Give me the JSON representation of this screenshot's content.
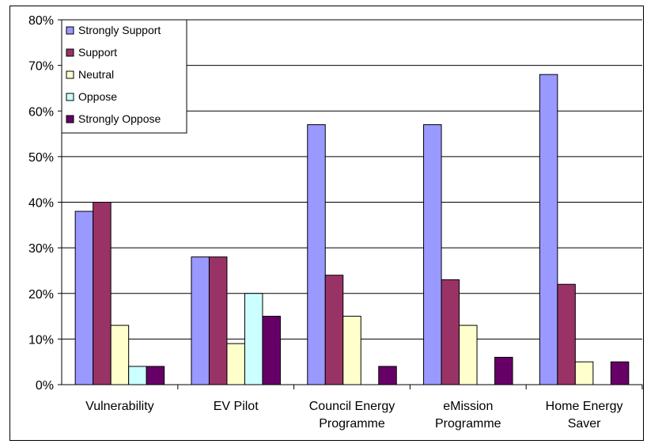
{
  "chart_data": {
    "type": "bar",
    "categories": [
      [
        "Vulnerability"
      ],
      [
        "EV Pilot"
      ],
      [
        "Council Energy",
        "Programme"
      ],
      [
        "eMission",
        "Programme"
      ],
      [
        "Home Energy",
        "Saver"
      ]
    ],
    "series": [
      {
        "name": "Strongly Support",
        "color": "#9999ff",
        "values": [
          38,
          28,
          57,
          57,
          68
        ]
      },
      {
        "name": "Support",
        "color": "#993366",
        "values": [
          40,
          28,
          24,
          23,
          22
        ]
      },
      {
        "name": "Neutral",
        "color": "#ffffcc",
        "values": [
          13,
          9,
          15,
          13,
          5
        ]
      },
      {
        "name": "Oppose",
        "color": "#ccffff",
        "values": [
          4,
          20,
          0,
          0,
          0
        ]
      },
      {
        "name": "Strongly Oppose",
        "color": "#660066",
        "values": [
          4,
          15,
          4,
          6,
          5
        ]
      }
    ],
    "ylim": [
      0,
      80
    ],
    "yticks": [
      0,
      10,
      20,
      30,
      40,
      50,
      60,
      70,
      80
    ],
    "ytick_labels": [
      "0%",
      "10%",
      "20%",
      "30%",
      "40%",
      "50%",
      "60%",
      "70%",
      "80%"
    ],
    "grid": true,
    "legend_position": "top-left",
    "title": "",
    "xlabel": "",
    "ylabel": ""
  }
}
